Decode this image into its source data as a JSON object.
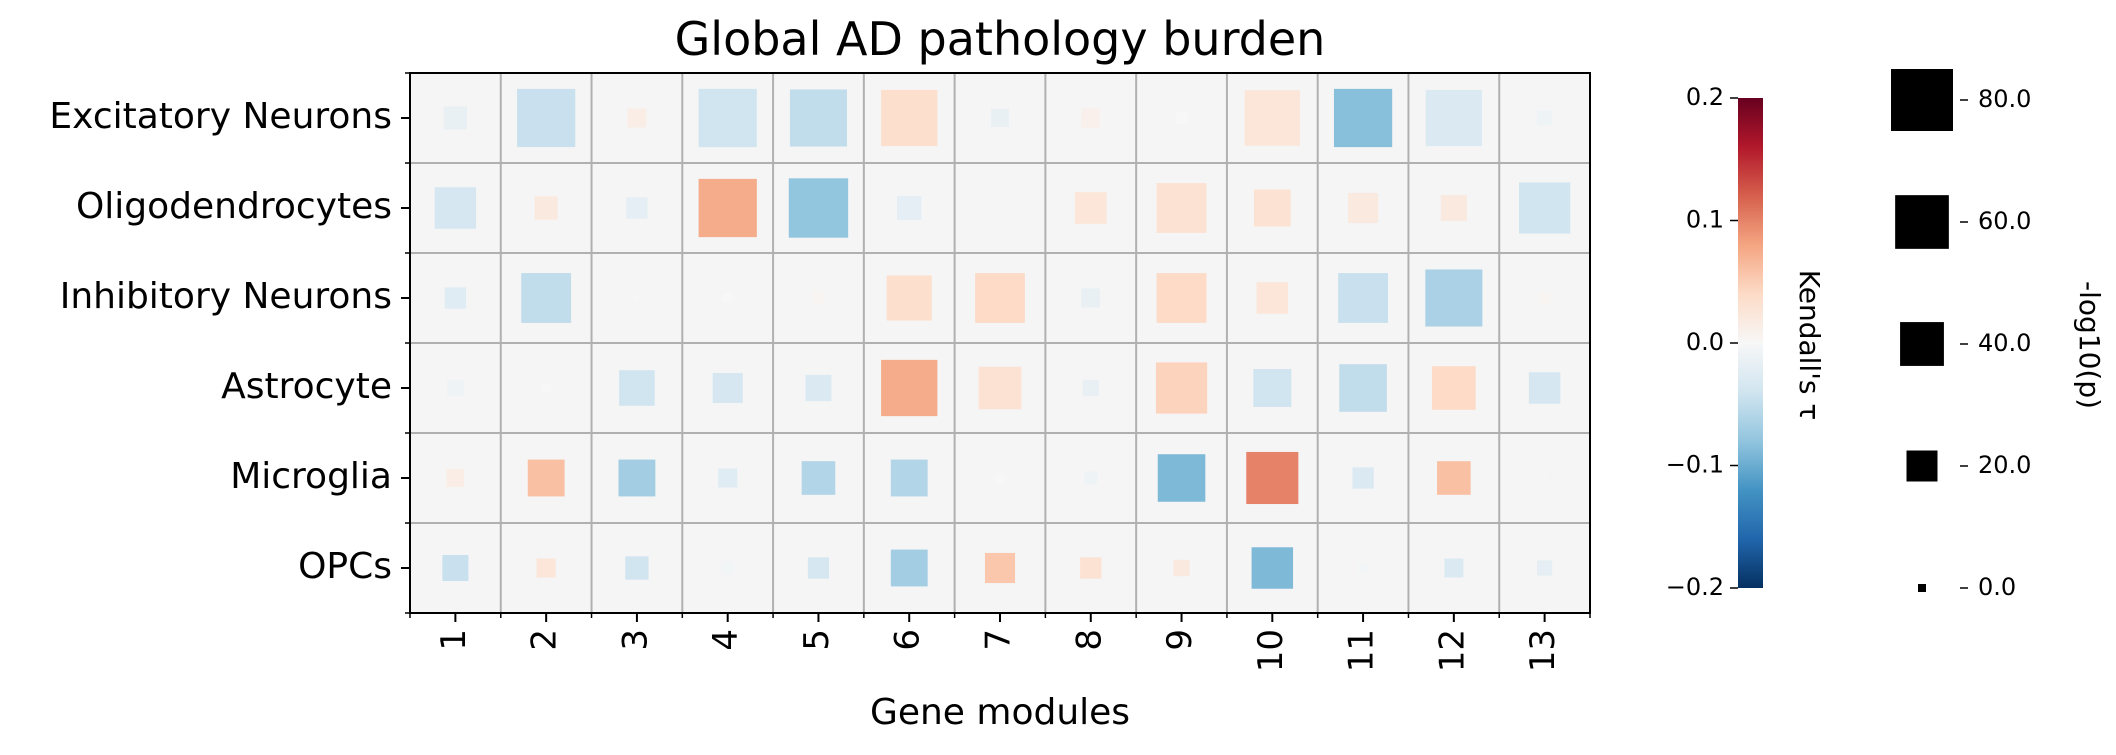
{
  "chart_data": {
    "type": "heatmap",
    "title": "Global AD pathology burden",
    "xlabel": "Gene modules",
    "ylabel": "",
    "x_categories": [
      "1",
      "2",
      "3",
      "4",
      "5",
      "6",
      "7",
      "8",
      "9",
      "10",
      "11",
      "12",
      "13"
    ],
    "y_categories": [
      "Excitatory Neurons",
      "Oligodendrocytes",
      "Inhibitory Neurons",
      "Astrocyte",
      "Microglia",
      "OPCs"
    ],
    "tau": [
      [
        -0.015,
        -0.045,
        0.015,
        -0.04,
        -0.05,
        0.035,
        -0.015,
        0.01,
        0.0,
        0.025,
        -0.085,
        -0.03,
        -0.01
      ],
      [
        -0.035,
        0.02,
        -0.02,
        0.075,
        -0.08,
        -0.02,
        0.0,
        0.025,
        0.03,
        0.03,
        0.02,
        0.02,
        -0.04
      ],
      [
        -0.025,
        -0.05,
        0.0,
        0.0,
        0.005,
        0.035,
        0.04,
        -0.015,
        0.04,
        0.025,
        -0.045,
        -0.065,
        0.005
      ],
      [
        -0.01,
        0.0,
        -0.04,
        -0.035,
        -0.03,
        0.075,
        0.03,
        -0.015,
        0.045,
        -0.04,
        -0.05,
        0.04,
        -0.035
      ],
      [
        0.015,
        0.06,
        -0.07,
        -0.025,
        -0.06,
        -0.06,
        0.0,
        -0.01,
        -0.09,
        0.1,
        -0.03,
        0.06,
        0.0
      ],
      [
        -0.045,
        0.025,
        -0.04,
        -0.005,
        -0.035,
        -0.07,
        0.055,
        0.03,
        0.02,
        -0.09,
        -0.005,
        -0.03,
        -0.02
      ]
    ],
    "neg_log10_p": [
      [
        12,
        75,
        8,
        75,
        72,
        70,
        7,
        8,
        3,
        68,
        75,
        70,
        5
      ],
      [
        38,
        12,
        10,
        75,
        78,
        13,
        0,
        22,
        55,
        30,
        20,
        15,
        58
      ],
      [
        10,
        55,
        0,
        2,
        3,
        45,
        55,
        8,
        55,
        22,
        55,
        72,
        3
      ],
      [
        6,
        2,
        28,
        20,
        15,
        70,
        40,
        6,
        58,
        32,
        50,
        42,
        22
      ],
      [
        7,
        30,
        30,
        8,
        25,
        30,
        2,
        4,
        50,
        60,
        10,
        25,
        0
      ],
      [
        15,
        8,
        12,
        3,
        10,
        30,
        20,
        10,
        6,
        38,
        2,
        8,
        5
      ]
    ],
    "color_scale": {
      "label": "Kendall's τ",
      "min": -0.2,
      "max": 0.2,
      "ticks": [
        "0.2",
        "0.1",
        "0.0",
        "−0.1",
        "−0.2"
      ],
      "tick_values": [
        0.2,
        0.1,
        0.0,
        -0.1,
        -0.2
      ],
      "colormap": "RdBu_r"
    },
    "size_scale": {
      "label": "-log10(p)",
      "ticks": [
        "80.0",
        "60.0",
        "40.0",
        "20.0",
        "0.0"
      ],
      "tick_values": [
        80,
        60,
        40,
        20,
        0
      ],
      "max": 85
    },
    "grid": true,
    "background": "#f5f5f5"
  }
}
